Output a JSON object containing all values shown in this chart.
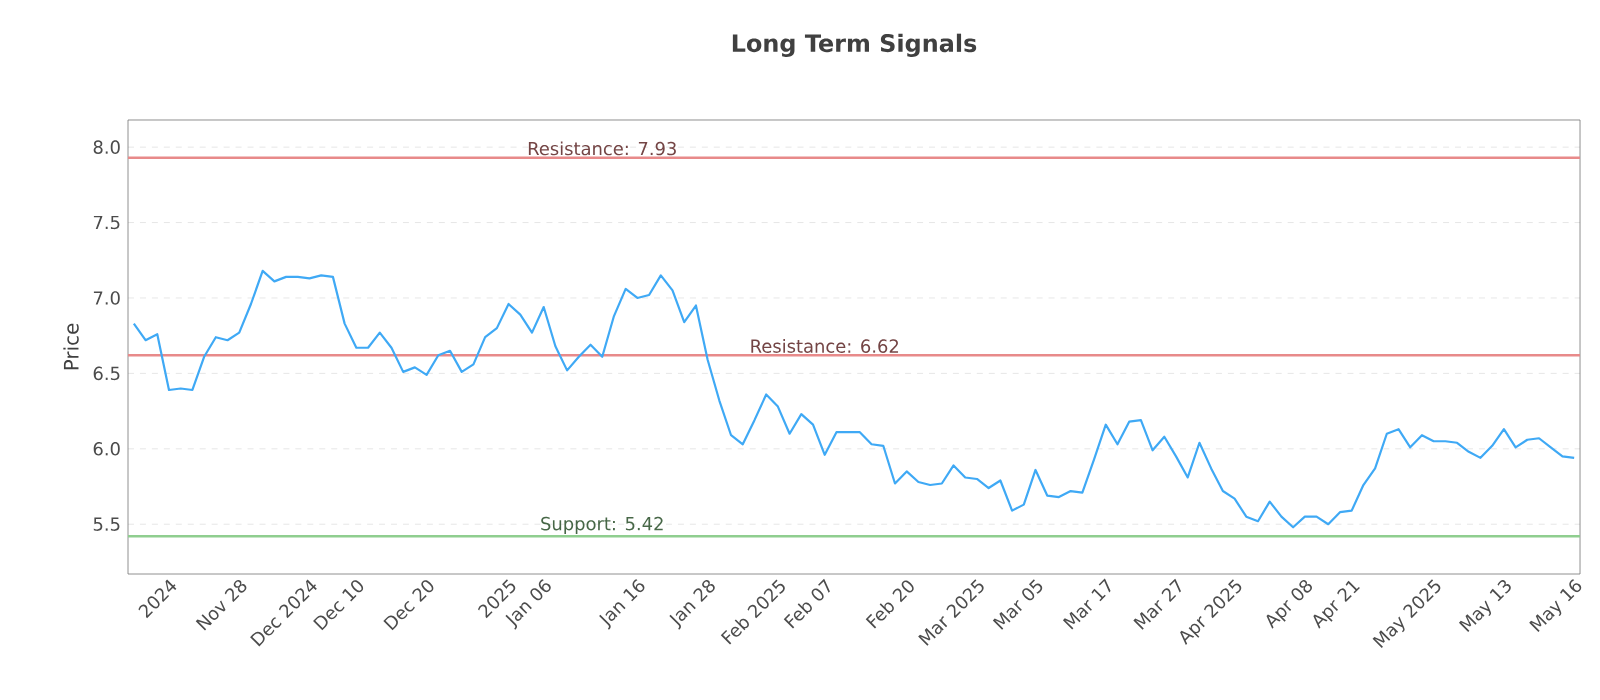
{
  "chart_data": {
    "type": "line",
    "title": "Long Term Signals",
    "ylabel": "Price",
    "categories": [
      null,
      null,
      null,
      "2024",
      null,
      null,
      null,
      null,
      null,
      "Nov 28",
      null,
      null,
      null,
      null,
      null,
      "Dec 2024",
      null,
      null,
      null,
      "Dec 10",
      null,
      null,
      null,
      null,
      null,
      "Dec 20",
      null,
      null,
      null,
      null,
      null,
      null,
      "2025",
      null,
      null,
      "Jan 06",
      null,
      null,
      null,
      null,
      null,
      null,
      null,
      "Jan 16",
      null,
      null,
      null,
      null,
      null,
      "Jan 28",
      null,
      null,
      null,
      null,
      null,
      "Feb 2025",
      null,
      null,
      null,
      "Feb 07",
      null,
      null,
      null,
      null,
      null,
      null,
      "Feb 20",
      null,
      null,
      null,
      null,
      null,
      "Mar 2025",
      null,
      null,
      null,
      null,
      "Mar 05",
      null,
      null,
      null,
      null,
      null,
      "Mar 17",
      null,
      null,
      null,
      null,
      null,
      "Mar 27",
      null,
      null,
      null,
      null,
      "Apr 2025",
      null,
      null,
      null,
      null,
      null,
      "Apr 08",
      null,
      null,
      null,
      "Apr 21",
      null,
      null,
      null,
      null,
      null,
      null,
      "May 2025",
      null,
      null,
      null,
      null,
      null,
      "May 13",
      null,
      null,
      null,
      null,
      null,
      "May 16"
    ],
    "series": [
      {
        "color": "#3fa9f5",
        "values": [
          6.83,
          6.72,
          6.76,
          6.39,
          6.4,
          6.39,
          6.61,
          6.74,
          6.72,
          6.77,
          6.96,
          7.18,
          7.11,
          7.14,
          7.14,
          7.13,
          7.15,
          7.14,
          6.83,
          6.67,
          6.67,
          6.77,
          6.67,
          6.51,
          6.54,
          6.49,
          6.62,
          6.65,
          6.51,
          6.56,
          6.74,
          6.8,
          6.96,
          6.89,
          6.77,
          6.94,
          6.68,
          6.52,
          6.61,
          6.69,
          6.61,
          6.88,
          7.06,
          7.0,
          7.02,
          7.15,
          7.05,
          6.84,
          6.95,
          6.59,
          6.32,
          6.09,
          6.03,
          6.19,
          6.36,
          6.28,
          6.1,
          6.23,
          6.16,
          5.96,
          6.11,
          6.11,
          6.11,
          6.03,
          6.02,
          5.77,
          5.85,
          5.78,
          5.76,
          5.77,
          5.89,
          5.81,
          5.8,
          5.74,
          5.79,
          5.59,
          5.63,
          5.86,
          5.69,
          5.68,
          5.72,
          5.71,
          5.93,
          6.16,
          6.03,
          6.18,
          6.19,
          5.99,
          6.08,
          5.95,
          5.81,
          6.04,
          5.87,
          5.72,
          5.67,
          5.55,
          5.52,
          5.65,
          5.55,
          5.48,
          5.55,
          5.55,
          5.5,
          5.58,
          5.59,
          5.76,
          5.87,
          6.1,
          6.13,
          6.01,
          6.09,
          6.05,
          6.05,
          6.04,
          5.98,
          5.94,
          6.02,
          6.13,
          6.01,
          6.06,
          6.07,
          6.01,
          5.95,
          5.94
        ]
      }
    ],
    "ylim": [
      5.17,
      8.18
    ],
    "yticks": [
      5.5,
      {
        "value": 6,
        "label": "6.0"
      },
      6.5,
      {
        "value": 7,
        "label": "7.0"
      },
      7.5,
      {
        "value": 8,
        "label": "8.0"
      }
    ],
    "grid": "y",
    "marker": "none",
    "line_style": "solid",
    "ref_lines": [
      {
        "axis": "y",
        "value": 7.93,
        "label": "Resistance: 7.93",
        "color": "#e88a8a"
      },
      {
        "axis": "y",
        "value": 6.62,
        "label": "Resistance: 6.62",
        "color": "#e88a8a"
      },
      {
        "axis": "y",
        "value": 5.42,
        "label": "Support: 5.42",
        "color": "#8fce8f"
      }
    ]
  }
}
